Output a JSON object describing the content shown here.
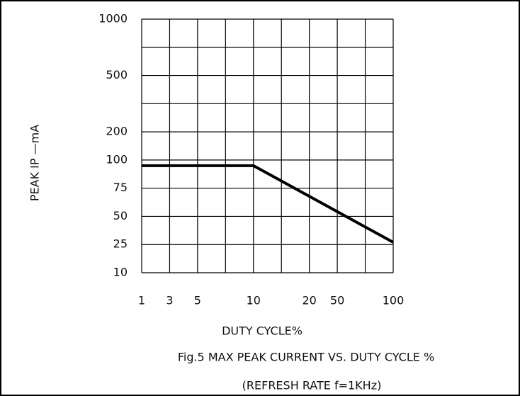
{
  "chart_data": {
    "type": "line",
    "title": "Fig.5 MAX PEAK CURRENT VS. DUTY CYCLE %",
    "subtitle": "(REFRESH RATE f=1KHz)",
    "x_label": "DUTY CYCLE%",
    "y_label": "PEAK IP  —mA",
    "xlim": [
      1,
      100
    ],
    "ylim": [
      10,
      1000
    ],
    "xticks": [
      1,
      3,
      5,
      null,
      10,
      null,
      20,
      50,
      null,
      100
    ],
    "yticks": [
      10,
      25,
      50,
      75,
      100,
      200,
      null,
      500,
      null,
      1000
    ],
    "grid": true,
    "series": [
      {
        "name": null,
        "color": "#000000",
        "x": [
          1,
          10,
          100
        ],
        "values": [
          95,
          95,
          27
        ]
      }
    ]
  }
}
